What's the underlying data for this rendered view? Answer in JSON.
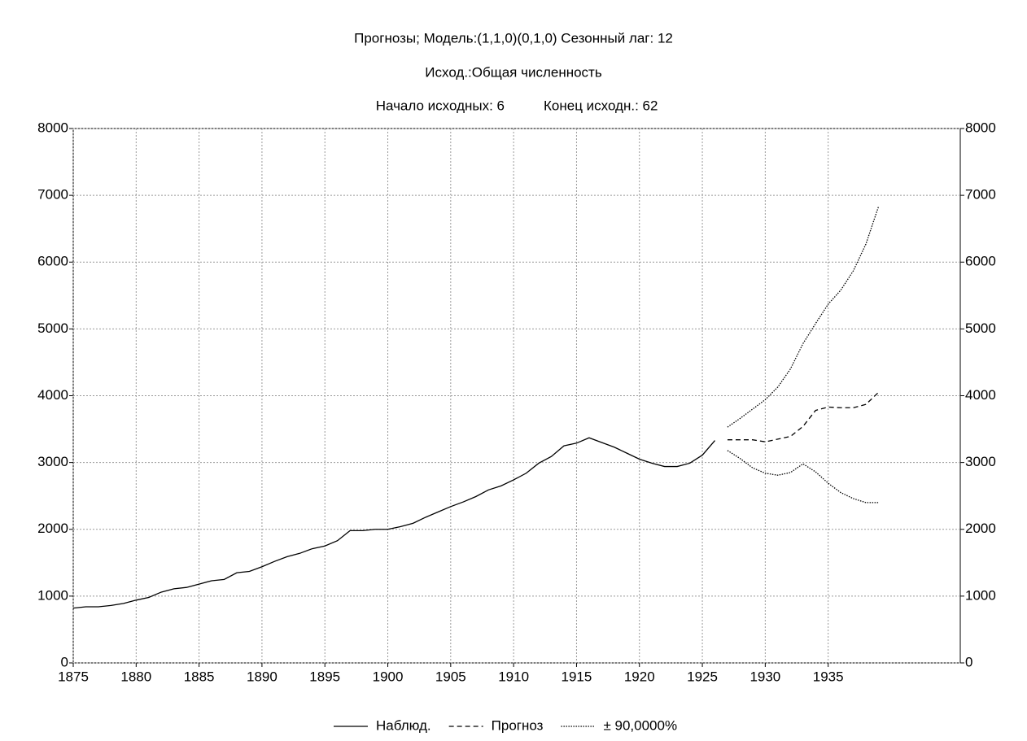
{
  "chart_data": {
    "type": "line",
    "title": "Прогнозы; Модель:(1,1,0)(0,1,0) Сезонный лаг: 12",
    "subtitle": "Исход.:Общая численность",
    "annotations": [
      "Начало исходных: 6",
      "Конец исходн.: 62"
    ],
    "xlim": [
      1875,
      1945.5
    ],
    "xticks": [
      1875,
      1880,
      1885,
      1890,
      1895,
      1900,
      1905,
      1910,
      1915,
      1920,
      1925,
      1930,
      1935
    ],
    "ylim": [
      0,
      8000
    ],
    "yticks": [
      0,
      1000,
      2000,
      3000,
      4000,
      5000,
      6000,
      7000,
      8000
    ],
    "y2lim": [
      0,
      8000
    ],
    "y2ticks": [
      0,
      1000,
      2000,
      3000,
      4000,
      5000,
      6000,
      7000,
      8000
    ],
    "grid": true,
    "legend": "bottom",
    "series": [
      {
        "name": "Наблюд.",
        "color": "#000000",
        "style": "solid",
        "x": [
          1875,
          1876,
          1877,
          1878,
          1879,
          1880,
          1881,
          1882,
          1883,
          1884,
          1885,
          1886,
          1887,
          1888,
          1889,
          1890,
          1891,
          1892,
          1893,
          1894,
          1895,
          1896,
          1897,
          1898,
          1899,
          1900,
          1901,
          1902,
          1903,
          1904,
          1905,
          1906,
          1907,
          1908,
          1909,
          1910,
          1911,
          1912,
          1913,
          1914,
          1915,
          1916,
          1917,
          1918,
          1919,
          1920,
          1921,
          1922,
          1923,
          1924,
          1925,
          1926
        ],
        "values": [
          820,
          840,
          840,
          860,
          890,
          940,
          980,
          1060,
          1110,
          1130,
          1180,
          1230,
          1250,
          1350,
          1370,
          1440,
          1520,
          1590,
          1640,
          1710,
          1750,
          1830,
          1980,
          1980,
          2000,
          2000,
          2040,
          2090,
          2180,
          2260,
          2340,
          2410,
          2490,
          2590,
          2650,
          2740,
          2840,
          2990,
          3090,
          3250,
          3290,
          3370,
          3300,
          3230,
          3140,
          3050,
          2990,
          2940,
          2940,
          2990,
          3110,
          3330
        ]
      },
      {
        "name": "Прогноз",
        "color": "#000000",
        "style": "dashed",
        "x": [
          1927,
          1928,
          1929,
          1930,
          1931,
          1932,
          1933,
          1934,
          1935,
          1936,
          1937,
          1938,
          1939
        ],
        "values": [
          3340,
          3340,
          3340,
          3310,
          3350,
          3390,
          3540,
          3780,
          3830,
          3820,
          3820,
          3870,
          4050
        ]
      }
    ],
    "band": {
      "name": "± 90,0000%",
      "color": "#000000",
      "style": "dotted",
      "x": [
        1927,
        1928,
        1929,
        1930,
        1931,
        1932,
        1933,
        1934,
        1935,
        1936,
        1937,
        1938,
        1939
      ],
      "lower": [
        3180,
        3060,
        2920,
        2840,
        2810,
        2850,
        2980,
        2860,
        2690,
        2550,
        2460,
        2400,
        2400
      ],
      "upper": [
        3530,
        3660,
        3800,
        3940,
        4130,
        4400,
        4780,
        5080,
        5370,
        5580,
        5870,
        6270,
        6830
      ]
    }
  }
}
